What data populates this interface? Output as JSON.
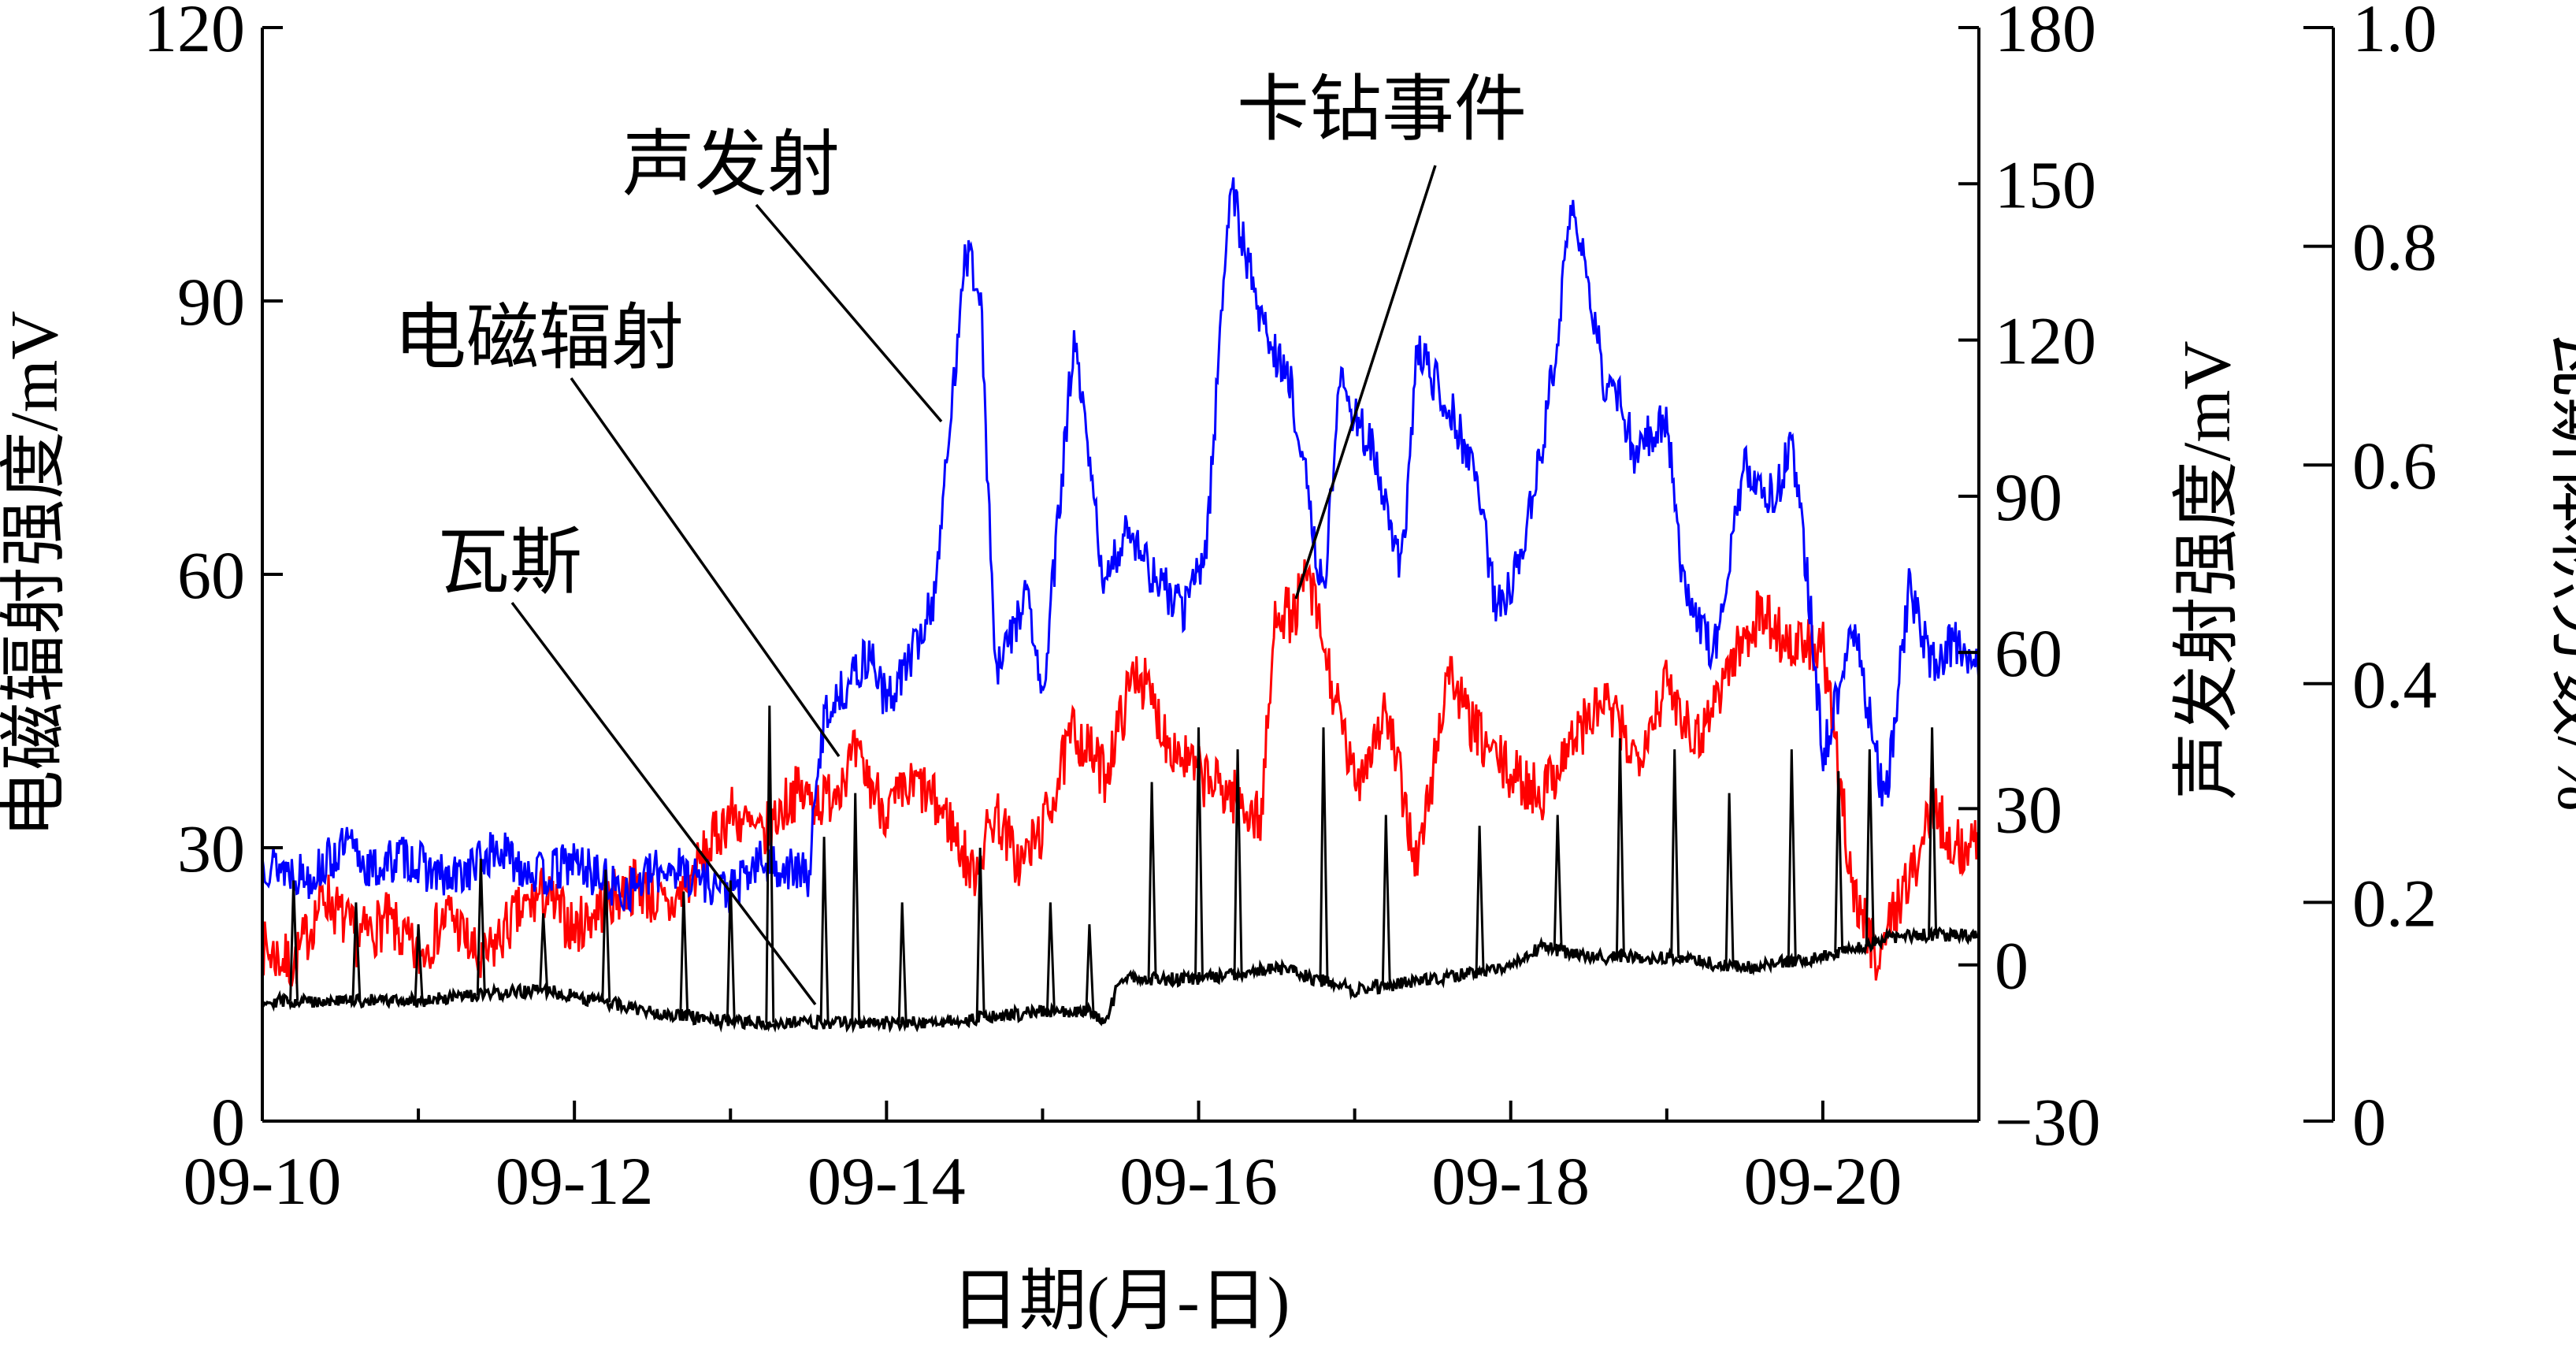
{
  "chart_data": {
    "type": "line",
    "xlabel": "日期(月-日)",
    "x_ticks": [
      "09-10",
      "09-12",
      "09-14",
      "09-16",
      "09-18",
      "09-20"
    ],
    "x_range": [
      "09-10",
      "09-21"
    ],
    "axes": [
      {
        "id": "left",
        "label": "电磁辐射强度/mV",
        "range": [
          0,
          120
        ],
        "ticks": [
          0,
          30,
          60,
          90,
          120
        ]
      },
      {
        "id": "right1",
        "label": "声发射强度/mV",
        "range": [
          -30,
          180
        ],
        "ticks": [
          -30,
          0,
          30,
          60,
          90,
          120,
          150,
          180
        ]
      },
      {
        "id": "right2",
        "label": "瓦斯体积分数/%",
        "range": [
          0,
          1.0
        ],
        "ticks": [
          "0",
          "0.2",
          "0.4",
          "0.6",
          "0.8",
          "1.0"
        ]
      }
    ],
    "series": [
      {
        "name": "声发射",
        "axis": "right1",
        "color": "#0000ff",
        "points": [
          [
            0.0,
            20
          ],
          [
            0.3,
            17
          ],
          [
            0.55,
            23
          ],
          [
            0.7,
            18
          ],
          [
            0.9,
            21
          ],
          [
            1.2,
            16
          ],
          [
            1.5,
            22
          ],
          [
            1.8,
            17
          ],
          [
            2.0,
            20
          ],
          [
            2.3,
            14
          ],
          [
            2.6,
            19
          ],
          [
            2.8,
            17
          ],
          [
            3.0,
            14
          ],
          [
            3.2,
            20
          ],
          [
            3.5,
            17
          ],
          [
            3.6,
            48
          ],
          [
            3.8,
            56
          ],
          [
            3.9,
            60
          ],
          [
            4.0,
            50
          ],
          [
            4.2,
            62
          ],
          [
            4.3,
            70
          ],
          [
            4.4,
            100
          ],
          [
            4.5,
            138
          ],
          [
            4.6,
            130
          ],
          [
            4.7,
            55
          ],
          [
            4.9,
            72
          ],
          [
            5.0,
            50
          ],
          [
            5.2,
            120
          ],
          [
            5.4,
            72
          ],
          [
            5.55,
            85
          ],
          [
            5.7,
            75
          ],
          [
            5.9,
            68
          ],
          [
            6.05,
            80
          ],
          [
            6.2,
            150
          ],
          [
            6.4,
            124
          ],
          [
            6.6,
            110
          ],
          [
            6.8,
            70
          ],
          [
            6.9,
            112
          ],
          [
            7.1,
            100
          ],
          [
            7.3,
            75
          ],
          [
            7.4,
            118
          ],
          [
            7.6,
            108
          ],
          [
            7.8,
            92
          ],
          [
            7.9,
            68
          ],
          [
            8.0,
            72
          ],
          [
            8.2,
            98
          ],
          [
            8.4,
            146
          ],
          [
            8.5,
            130
          ],
          [
            8.6,
            112
          ],
          [
            8.7,
            108
          ],
          [
            8.8,
            98
          ],
          [
            9.0,
            106
          ],
          [
            9.1,
            74
          ],
          [
            9.3,
            60
          ],
          [
            9.5,
            95
          ],
          [
            9.7,
            90
          ],
          [
            9.8,
            100
          ],
          [
            9.9,
            75
          ],
          [
            10.0,
            40
          ],
          [
            10.2,
            65
          ],
          [
            10.4,
            30
          ],
          [
            10.55,
            72
          ],
          [
            10.7,
            58
          ],
          [
            10.85,
            62
          ],
          [
            11.0,
            58
          ]
        ]
      },
      {
        "name": "电磁辐射",
        "axis": "left",
        "color": "#ff0000",
        "points": [
          [
            0.0,
            19
          ],
          [
            0.2,
            17
          ],
          [
            0.4,
            25
          ],
          [
            0.6,
            20
          ],
          [
            0.8,
            22
          ],
          [
            1.0,
            18
          ],
          [
            1.2,
            23
          ],
          [
            1.4,
            17
          ],
          [
            1.6,
            22
          ],
          [
            1.8,
            25
          ],
          [
            2.0,
            21
          ],
          [
            2.2,
            24
          ],
          [
            2.4,
            26
          ],
          [
            2.6,
            23
          ],
          [
            2.8,
            28
          ],
          [
            3.0,
            34
          ],
          [
            3.2,
            31
          ],
          [
            3.4,
            36
          ],
          [
            3.6,
            35
          ],
          [
            3.8,
            40
          ],
          [
            4.0,
            34
          ],
          [
            4.2,
            37
          ],
          [
            4.4,
            33
          ],
          [
            4.55,
            27
          ],
          [
            4.7,
            34
          ],
          [
            4.85,
            28
          ],
          [
            5.0,
            32
          ],
          [
            5.2,
            43
          ],
          [
            5.4,
            38
          ],
          [
            5.6,
            50
          ],
          [
            5.8,
            42
          ],
          [
            6.0,
            38
          ],
          [
            6.2,
            36
          ],
          [
            6.4,
            33
          ],
          [
            6.5,
            57
          ],
          [
            6.6,
            55
          ],
          [
            6.7,
            60
          ],
          [
            6.85,
            48
          ],
          [
            7.0,
            37
          ],
          [
            7.2,
            45
          ],
          [
            7.4,
            28
          ],
          [
            7.5,
            38
          ],
          [
            7.6,
            50
          ],
          [
            7.7,
            45
          ],
          [
            7.8,
            42
          ],
          [
            8.0,
            38
          ],
          [
            8.2,
            36
          ],
          [
            8.4,
            42
          ],
          [
            8.6,
            46
          ],
          [
            8.8,
            40
          ],
          [
            9.0,
            48
          ],
          [
            9.2,
            42
          ],
          [
            9.4,
            50
          ],
          [
            9.6,
            56
          ],
          [
            9.8,
            52
          ],
          [
            10.0,
            52
          ],
          [
            10.1,
            38
          ],
          [
            10.2,
            25
          ],
          [
            10.35,
            18
          ],
          [
            10.5,
            25
          ],
          [
            10.6,
            28
          ],
          [
            10.7,
            35
          ],
          [
            10.85,
            30
          ],
          [
            11.0,
            30
          ]
        ]
      },
      {
        "name": "瓦斯",
        "axis": "right2",
        "color": "#000000",
        "base": [
          [
            0.0,
            0.11
          ],
          [
            1.0,
            0.11
          ],
          [
            1.8,
            0.12
          ],
          [
            2.5,
            0.1
          ],
          [
            3.0,
            0.09
          ],
          [
            3.5,
            0.09
          ],
          [
            4.0,
            0.09
          ],
          [
            4.3,
            0.09
          ],
          [
            5.0,
            0.1
          ],
          [
            5.3,
            0.1
          ],
          [
            5.4,
            0.09
          ],
          [
            5.5,
            0.13
          ],
          [
            6.0,
            0.13
          ],
          [
            6.5,
            0.14
          ],
          [
            7.0,
            0.12
          ],
          [
            7.5,
            0.13
          ],
          [
            8.0,
            0.14
          ],
          [
            8.2,
            0.16
          ],
          [
            8.5,
            0.15
          ],
          [
            9.0,
            0.15
          ],
          [
            9.5,
            0.14
          ],
          [
            10.0,
            0.15
          ],
          [
            10.5,
            0.17
          ],
          [
            11.0,
            0.17
          ]
        ],
        "spikes": [
          [
            0.2,
            0.22
          ],
          [
            0.6,
            0.2
          ],
          [
            1.0,
            0.18
          ],
          [
            1.4,
            0.24
          ],
          [
            1.8,
            0.19
          ],
          [
            2.2,
            0.23
          ],
          [
            2.7,
            0.21
          ],
          [
            3.0,
            0.22
          ],
          [
            3.25,
            0.38
          ],
          [
            3.6,
            0.26
          ],
          [
            3.8,
            0.3
          ],
          [
            4.1,
            0.2
          ],
          [
            4.6,
            0.25
          ],
          [
            5.05,
            0.2
          ],
          [
            5.3,
            0.18
          ],
          [
            5.7,
            0.31
          ],
          [
            6.0,
            0.36
          ],
          [
            6.25,
            0.34
          ],
          [
            6.8,
            0.36
          ],
          [
            7.2,
            0.28
          ],
          [
            7.8,
            0.27
          ],
          [
            8.3,
            0.28
          ],
          [
            8.7,
            0.35
          ],
          [
            9.05,
            0.34
          ],
          [
            9.4,
            0.3
          ],
          [
            9.8,
            0.34
          ],
          [
            10.1,
            0.32
          ],
          [
            10.3,
            0.34
          ],
          [
            10.7,
            0.36
          ]
        ]
      }
    ],
    "annotations": [
      {
        "text": "声发射",
        "target": "声发射"
      },
      {
        "text": "电磁辐射",
        "target": "电磁辐射"
      },
      {
        "text": "卡钻事件",
        "target": "卡钻事件"
      },
      {
        "text": "瓦斯",
        "target": "瓦斯"
      }
    ]
  }
}
